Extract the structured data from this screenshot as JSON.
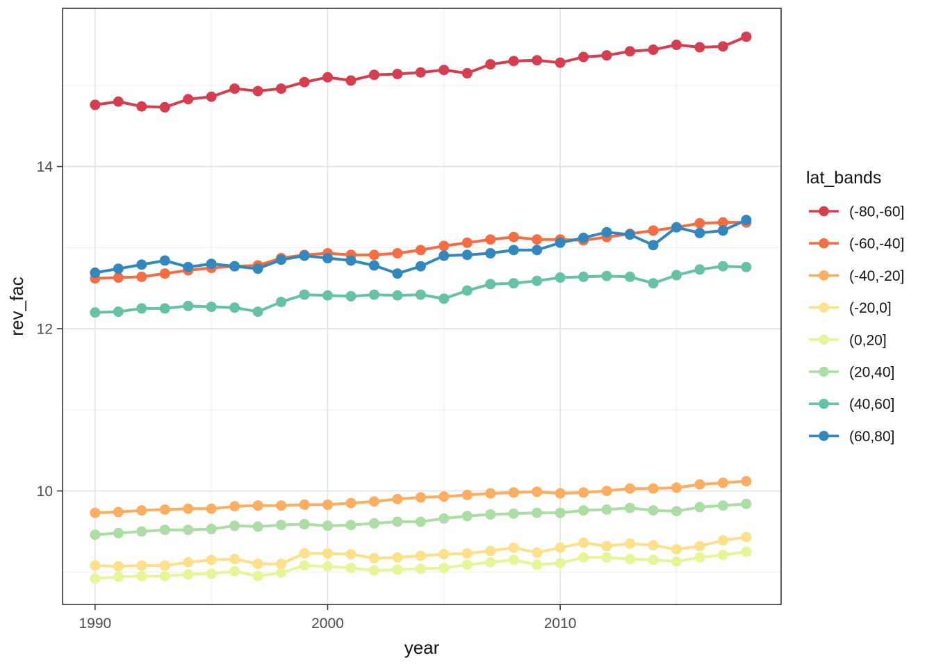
{
  "chart_data": {
    "type": "line",
    "title": "",
    "xlabel": "year",
    "ylabel": "rev_fac",
    "legend_title": "lat_bands",
    "legend_position": "right",
    "grid": true,
    "xlim": [
      1988.6,
      2019.5
    ],
    "ylim": [
      8.6,
      15.95
    ],
    "x_major_ticks": [
      1990,
      2000,
      2010
    ],
    "x_tick_labels": [
      "1990",
      "2000",
      "2010"
    ],
    "x_minor_gridlines": [
      1995,
      2005,
      2015
    ],
    "y_major_ticks": [
      10,
      12,
      14
    ],
    "y_tick_labels": [
      "10",
      "12",
      "14"
    ],
    "y_minor_gridlines": [
      9,
      11,
      13,
      15
    ],
    "x": [
      1990,
      1991,
      1992,
      1993,
      1994,
      1995,
      1996,
      1997,
      1998,
      1999,
      2000,
      2001,
      2002,
      2003,
      2004,
      2005,
      2006,
      2007,
      2008,
      2009,
      2010,
      2011,
      2012,
      2013,
      2014,
      2015,
      2016,
      2017,
      2018
    ],
    "series": [
      {
        "name": "(-80,-60]",
        "color": "#d53e4f",
        "values": [
          14.76,
          14.8,
          14.74,
          14.73,
          14.83,
          14.86,
          14.96,
          14.93,
          14.96,
          15.04,
          15.1,
          15.06,
          15.13,
          15.14,
          15.16,
          15.19,
          15.15,
          15.26,
          15.3,
          15.31,
          15.28,
          15.35,
          15.37,
          15.42,
          15.44,
          15.5,
          15.47,
          15.48,
          15.6
        ]
      },
      {
        "name": "(-60,-40]",
        "color": "#f46d43",
        "values": [
          12.62,
          12.63,
          12.64,
          12.68,
          12.72,
          12.75,
          12.77,
          12.78,
          12.87,
          12.91,
          12.93,
          12.91,
          12.91,
          12.93,
          12.97,
          13.02,
          13.06,
          13.1,
          13.13,
          13.1,
          13.1,
          13.09,
          13.13,
          13.17,
          13.21,
          13.25,
          13.3,
          13.31,
          13.31
        ]
      },
      {
        "name": "(-40,-20]",
        "color": "#fdae61",
        "values": [
          9.73,
          9.74,
          9.76,
          9.77,
          9.78,
          9.78,
          9.81,
          9.82,
          9.82,
          9.83,
          9.83,
          9.85,
          9.87,
          9.9,
          9.92,
          9.93,
          9.95,
          9.97,
          9.98,
          9.99,
          9.97,
          9.98,
          10.0,
          10.03,
          10.03,
          10.04,
          10.08,
          10.1,
          10.12
        ]
      },
      {
        "name": "(-20,0]",
        "color": "#fee08b",
        "values": [
          9.08,
          9.07,
          9.08,
          9.08,
          9.12,
          9.15,
          9.16,
          9.1,
          9.1,
          9.23,
          9.23,
          9.22,
          9.17,
          9.18,
          9.2,
          9.22,
          9.23,
          9.26,
          9.3,
          9.24,
          9.3,
          9.36,
          9.32,
          9.35,
          9.33,
          9.28,
          9.32,
          9.39,
          9.43
        ]
      },
      {
        "name": "(0,20]",
        "color": "#e6f598",
        "values": [
          8.92,
          8.94,
          8.95,
          8.95,
          8.97,
          8.98,
          9.01,
          8.95,
          8.99,
          9.08,
          9.07,
          9.05,
          9.02,
          9.03,
          9.04,
          9.05,
          9.09,
          9.12,
          9.15,
          9.09,
          9.11,
          9.18,
          9.18,
          9.16,
          9.15,
          9.13,
          9.18,
          9.21,
          9.25
        ]
      },
      {
        "name": "(20,40]",
        "color": "#abdda4",
        "values": [
          9.46,
          9.48,
          9.5,
          9.52,
          9.52,
          9.53,
          9.57,
          9.56,
          9.58,
          9.59,
          9.57,
          9.58,
          9.6,
          9.62,
          9.62,
          9.66,
          9.69,
          9.71,
          9.72,
          9.73,
          9.73,
          9.76,
          9.77,
          9.79,
          9.76,
          9.75,
          9.8,
          9.82,
          9.84
        ]
      },
      {
        "name": "(40,60]",
        "color": "#66c2a5",
        "values": [
          12.2,
          12.21,
          12.25,
          12.25,
          12.28,
          12.27,
          12.26,
          12.21,
          12.33,
          12.42,
          12.41,
          12.4,
          12.42,
          12.41,
          12.42,
          12.37,
          12.47,
          12.55,
          12.56,
          12.59,
          12.63,
          12.64,
          12.65,
          12.64,
          12.56,
          12.66,
          12.73,
          12.77,
          12.76
        ]
      },
      {
        "name": "(60,80]",
        "color": "#3288bd",
        "values": [
          12.69,
          12.74,
          12.79,
          12.84,
          12.76,
          12.8,
          12.77,
          12.74,
          12.85,
          12.9,
          12.87,
          12.84,
          12.78,
          12.68,
          12.77,
          12.9,
          12.91,
          12.93,
          12.97,
          12.97,
          13.06,
          13.12,
          13.19,
          13.16,
          13.03,
          13.25,
          13.18,
          13.21,
          13.34
        ]
      }
    ],
    "style": {
      "panel_background": "#ffffff",
      "panel_border": "#333333",
      "grid_major": "#e4e4e4",
      "grid_minor": "#efefef",
      "tick_color": "#333333",
      "line_width": 4,
      "point_radius": 7.5
    }
  }
}
